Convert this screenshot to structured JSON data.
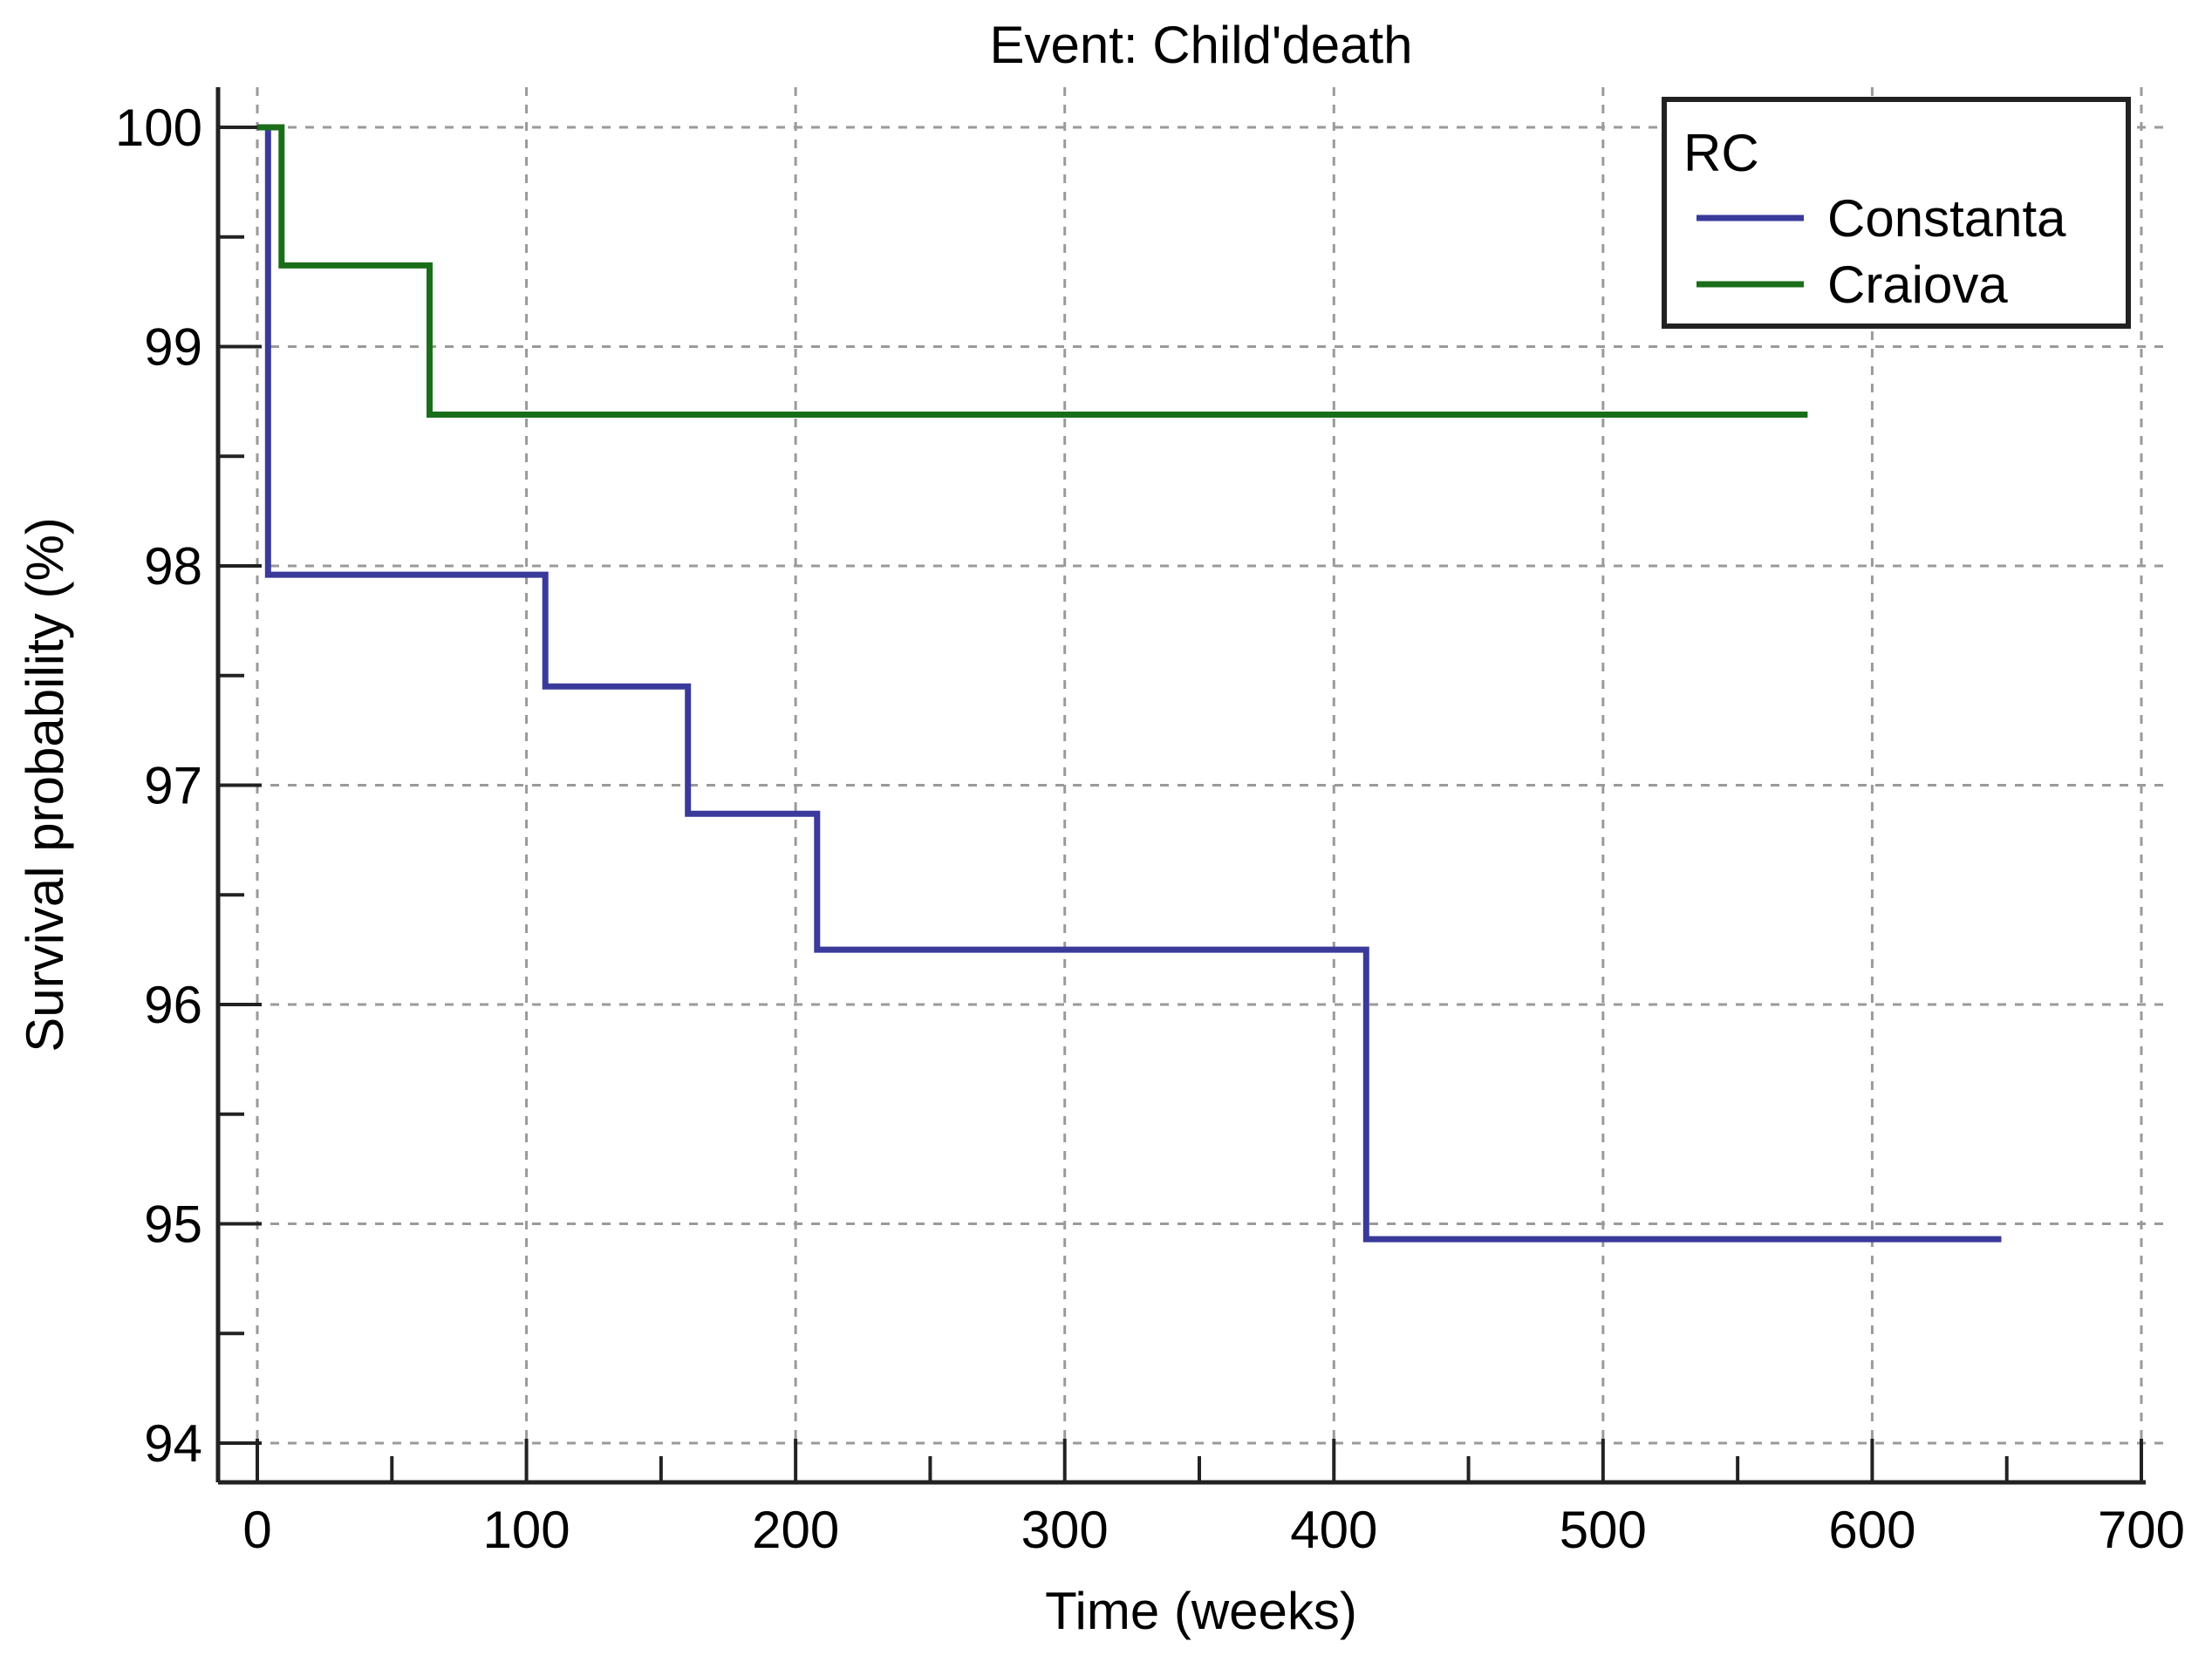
{
  "chart_data": {
    "type": "line",
    "title": "Event: Child'death",
    "xlabel": "Time (weeks)",
    "ylabel": "Survival probability (%)",
    "xlim": [
      0,
      700
    ],
    "ylim": [
      94,
      100
    ],
    "xticks": [
      0,
      100,
      200,
      300,
      400,
      500,
      600,
      700
    ],
    "xtick_labels": [
      "0",
      "100",
      "200",
      "300",
      "400",
      "500",
      "600",
      "700"
    ],
    "yticks": [
      94,
      95,
      96,
      97,
      98,
      99,
      100
    ],
    "ytick_labels": [
      "94",
      "95",
      "96",
      "97",
      "98",
      "99",
      "100"
    ],
    "grid": true,
    "step": true,
    "legend": {
      "title": "RC",
      "position": "top-right"
    },
    "series": [
      {
        "name": "Constanta",
        "color": "#3a3a9a",
        "x": [
          0,
          4,
          4,
          107,
          107,
          160,
          160,
          208,
          208,
          412,
          412,
          648
        ],
        "y": [
          100,
          100,
          97.96,
          97.96,
          97.45,
          97.45,
          96.87,
          96.87,
          96.25,
          96.25,
          94.93,
          94.93
        ]
      },
      {
        "name": "Craiova",
        "color": "#1a6e1a",
        "x": [
          0,
          9,
          9,
          64,
          64,
          576
        ],
        "y": [
          100,
          100,
          99.37,
          99.37,
          98.69,
          98.69
        ]
      }
    ]
  }
}
